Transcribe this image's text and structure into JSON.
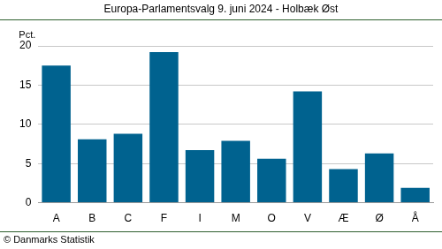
{
  "chart_data": {
    "type": "bar",
    "title": "Europa-Parlamentsvalg 9. juni 2024 - Holbæk Øst",
    "y_label": "Pct.",
    "annotation": "© Danmarks Statistik",
    "categories": [
      "A",
      "B",
      "C",
      "F",
      "I",
      "M",
      "O",
      "V",
      "Æ",
      "Ø",
      "Å"
    ],
    "values": [
      17.5,
      8.1,
      8.8,
      19.2,
      6.7,
      7.9,
      5.6,
      14.2,
      4.3,
      6.3,
      1.9
    ],
    "color": "#00628f",
    "ylim": [
      0,
      20
    ],
    "yticks": [
      0,
      5,
      10,
      15,
      20
    ],
    "grid": true
  }
}
